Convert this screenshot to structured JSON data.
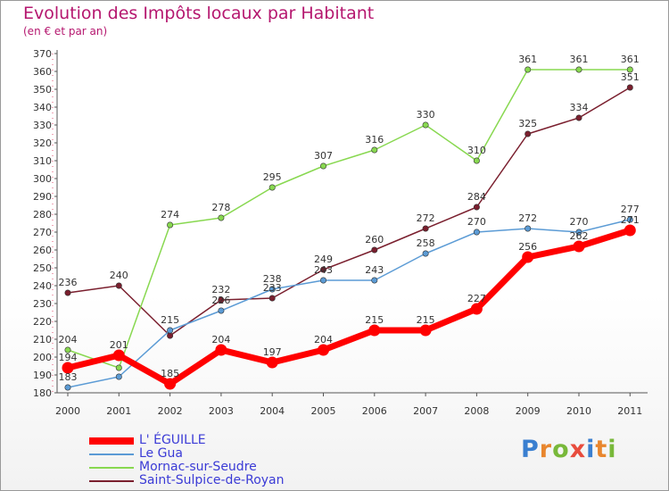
{
  "header": {
    "title": "Evolution des Impôts locaux par Habitant",
    "subtitle": "(en € et par an)"
  },
  "logo": {
    "text": "Proxiti",
    "letter_colors": [
      "#3a7fd0",
      "#e8862e",
      "#78b83a",
      "#e84c3d",
      "#3a7fd0",
      "#e8862e",
      "#78b83a"
    ]
  },
  "chart_data": {
    "type": "line",
    "title": "Evolution des Impôts locaux par Habitant",
    "subtitle": "(en € et par an)",
    "xlabel": "",
    "ylabel": "",
    "x": [
      "2000",
      "2001",
      "2002",
      "2003",
      "2004",
      "2005",
      "2006",
      "2007",
      "2008",
      "2009",
      "2010",
      "2011"
    ],
    "ylim": [
      180,
      370
    ],
    "yticks": [
      180,
      190,
      200,
      210,
      220,
      230,
      240,
      250,
      260,
      270,
      280,
      290,
      300,
      310,
      320,
      330,
      340,
      350,
      360,
      370
    ],
    "grid": false,
    "legend": "bottom-left",
    "series": [
      {
        "name": "Saint-Sulpice-de-Royan",
        "color": "#7a1f2e",
        "values": [
          236,
          240,
          212,
          232,
          233,
          249,
          260,
          272,
          284,
          325,
          334,
          351
        ]
      },
      {
        "name": "Mornac-sur-Seudre",
        "color": "#88d850",
        "values": [
          204,
          194,
          274,
          278,
          295,
          307,
          316,
          330,
          310,
          361,
          361,
          361
        ]
      },
      {
        "name": "Le Gua",
        "color": "#5b9bd5",
        "values": [
          183,
          189,
          215,
          226,
          238,
          243,
          243,
          258,
          270,
          272,
          270,
          277
        ]
      },
      {
        "name": "L' ÉGUILLE",
        "color": "#ff0000",
        "values": [
          194,
          201,
          185,
          204,
          197,
          204,
          215,
          215,
          227,
          256,
          262,
          271
        ]
      }
    ],
    "value_labels": [
      {
        "series": "Saint-Sulpice-de-Royan",
        "labels": [
          "236",
          "240",
          "",
          "232",
          "233",
          "249",
          "260",
          "272",
          "284",
          "325",
          "334",
          "351"
        ]
      },
      {
        "series": "Mornac-sur-Seudre",
        "labels": [
          "204",
          "",
          "274",
          "278",
          "295",
          "307",
          "316",
          "330",
          "310",
          "361",
          "361",
          "361"
        ]
      },
      {
        "series": "Le Gua",
        "labels": [
          "183",
          "",
          "215",
          "226",
          "238",
          "243",
          "243",
          "258",
          "270",
          "272",
          "270",
          "277"
        ]
      },
      {
        "series": "L' ÉGUILLE",
        "labels": [
          "194",
          "201",
          "185",
          "204",
          "197",
          "204",
          "215",
          "215",
          "227",
          "256",
          "262",
          "271"
        ]
      }
    ]
  }
}
